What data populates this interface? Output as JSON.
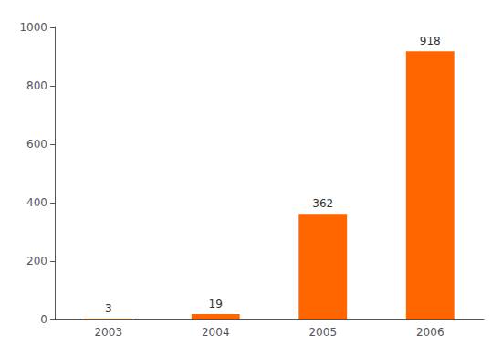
{
  "chart_data": {
    "type": "bar",
    "categories": [
      "2003",
      "2004",
      "2005",
      "2006"
    ],
    "values": [
      3,
      19,
      362,
      918
    ],
    "color": "#FF6600",
    "ylim": [
      0,
      1000
    ],
    "yticks": [
      0,
      200,
      400,
      600,
      800,
      1000
    ],
    "grid": false,
    "data_labels": true
  }
}
